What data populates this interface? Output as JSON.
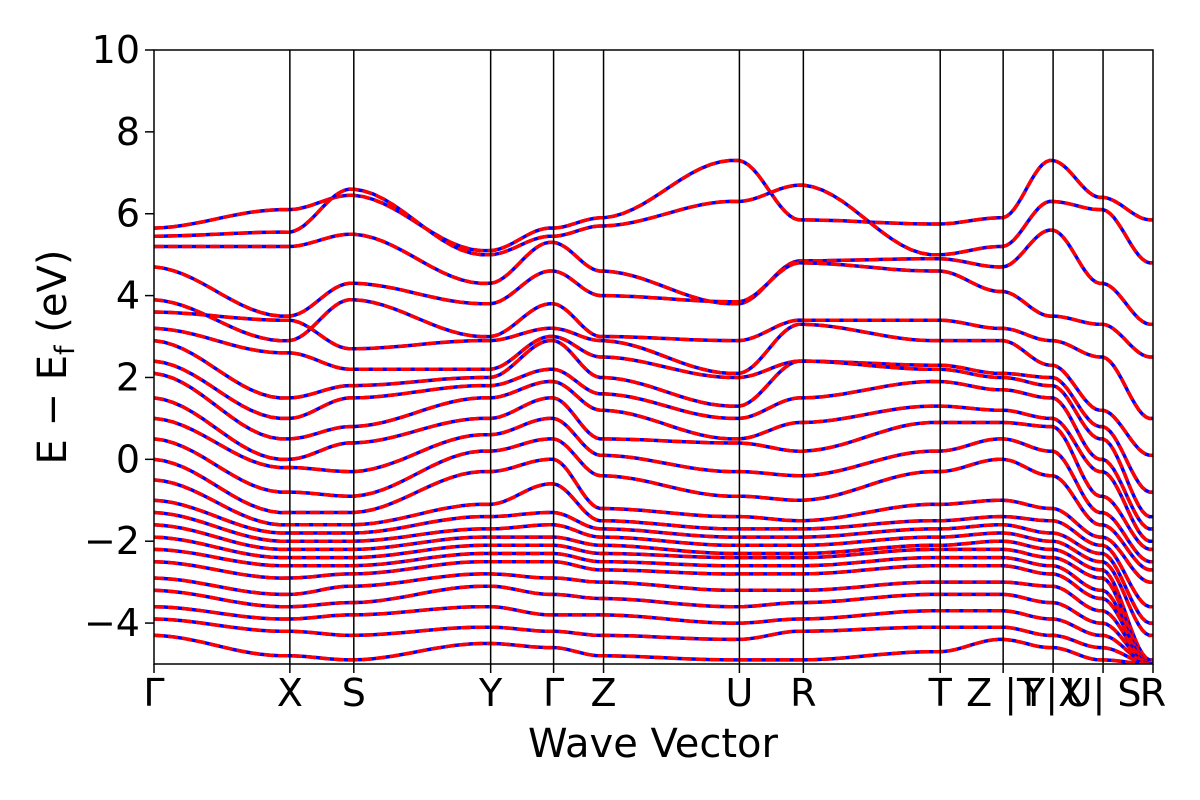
{
  "chart_data": {
    "type": "line",
    "xlabel": "Wave Vector",
    "ylabel": "E − E",
    "ylabel_sub": "f",
    "ylabel_unit": " (eV)",
    "ylim": [
      -5,
      10
    ],
    "yticks": [
      {
        "value": 10,
        "label": "10"
      },
      {
        "value": 8,
        "label": "8"
      },
      {
        "value": 6,
        "label": "6"
      },
      {
        "value": 4,
        "label": "4"
      },
      {
        "value": 2,
        "label": "2"
      },
      {
        "value": 0,
        "label": "0"
      },
      {
        "value": -2,
        "label": "−2"
      },
      {
        "value": -4,
        "label": "−4"
      }
    ],
    "xlim": [
      0,
      1
    ],
    "kpoints": [
      {
        "pos": 0.0,
        "label": "Γ"
      },
      {
        "pos": 0.136,
        "label": "X"
      },
      {
        "pos": 0.2,
        "label": "S"
      },
      {
        "pos": 0.337,
        "label": "Y"
      },
      {
        "pos": 0.4,
        "label": "Γ"
      },
      {
        "pos": 0.45,
        "label": "Z"
      },
      {
        "pos": 0.586,
        "label": "U"
      },
      {
        "pos": 0.65,
        "label": "R"
      },
      {
        "pos": 0.787,
        "label": "T"
      },
      {
        "pos": 0.85,
        "label": "Z |T"
      },
      {
        "pos": 0.9,
        "label": "Y|X"
      },
      {
        "pos": 0.95,
        "label": "U| S"
      },
      {
        "pos": 1.0,
        "label": "R"
      }
    ],
    "series": [
      {
        "color": "#0000ff",
        "style": "solid",
        "width": 3.5
      },
      {
        "color": "#ff0000",
        "style": "dashed",
        "width": 3.5
      }
    ],
    "bands": [
      {
        "nodes": [
          5.65,
          6.1,
          6.45,
          5.1,
          5.65,
          5.9,
          7.3,
          5.85,
          5.75,
          5.9,
          7.3,
          6.4,
          5.85
        ]
      },
      {
        "nodes": [
          5.45,
          5.55,
          6.6,
          5.0,
          5.45,
          5.7,
          6.3,
          6.7,
          5.0,
          5.2,
          6.3,
          6.1,
          4.8
        ]
      },
      {
        "nodes": [
          5.2,
          5.2,
          5.5,
          4.3,
          5.3,
          4.6,
          3.8,
          4.85,
          4.9,
          4.7,
          5.6,
          4.3,
          3.3
        ]
      },
      {
        "nodes": [
          4.7,
          3.5,
          4.3,
          3.8,
          4.6,
          4.0,
          3.85,
          4.8,
          4.6,
          4.1,
          3.5,
          3.3,
          2.5
        ]
      },
      {
        "nodes": [
          3.9,
          2.9,
          3.9,
          3.0,
          3.8,
          3.0,
          2.9,
          3.4,
          3.4,
          3.2,
          2.9,
          2.5,
          1.0
        ]
      },
      {
        "nodes": [
          3.6,
          3.4,
          2.7,
          2.9,
          3.2,
          2.9,
          2.1,
          3.3,
          2.9,
          2.9,
          2.3,
          1.2,
          0.1
        ]
      },
      {
        "nodes": [
          3.2,
          2.6,
          2.2,
          2.2,
          3.0,
          2.5,
          2.0,
          2.4,
          2.3,
          2.1,
          2.0,
          0.8,
          -0.8
        ]
      },
      {
        "nodes": [
          2.9,
          1.5,
          1.8,
          2.0,
          2.9,
          2.0,
          1.3,
          2.4,
          2.2,
          2.0,
          1.8,
          0.5,
          -1.4
        ]
      },
      {
        "nodes": [
          2.4,
          1.0,
          1.5,
          1.8,
          2.2,
          1.6,
          1.0,
          1.5,
          1.9,
          1.7,
          1.5,
          0.0,
          -1.7
        ]
      },
      {
        "nodes": [
          2.1,
          0.5,
          0.8,
          1.5,
          1.9,
          1.2,
          0.5,
          0.9,
          1.3,
          1.2,
          1.0,
          -0.3,
          -2.0
        ]
      },
      {
        "nodes": [
          1.5,
          0.0,
          0.4,
          1.0,
          1.5,
          0.5,
          0.4,
          0.2,
          0.9,
          0.9,
          0.8,
          -0.9,
          -2.2
        ]
      },
      {
        "nodes": [
          1.0,
          -0.2,
          -0.3,
          0.6,
          1.0,
          0.1,
          -0.3,
          -0.4,
          0.2,
          0.5,
          0.2,
          -1.3,
          -2.5
        ]
      },
      {
        "nodes": [
          0.5,
          -0.8,
          -0.9,
          0.2,
          0.5,
          -0.4,
          -0.9,
          -1.0,
          -0.3,
          0.0,
          -0.4,
          -1.6,
          -2.7
        ]
      },
      {
        "nodes": [
          0.0,
          -1.3,
          -1.3,
          -0.3,
          0.0,
          -1.2,
          -1.4,
          -1.5,
          -1.1,
          -1.0,
          -1.2,
          -1.9,
          -3.0
        ]
      },
      {
        "nodes": [
          -0.5,
          -1.6,
          -1.6,
          -1.1,
          -0.6,
          -1.5,
          -1.7,
          -1.7,
          -1.5,
          -1.4,
          -1.5,
          -2.1,
          -3.6
        ]
      },
      {
        "nodes": [
          -1.0,
          -1.8,
          -1.8,
          -1.4,
          -1.3,
          -1.7,
          -1.9,
          -1.9,
          -1.7,
          -1.6,
          -1.8,
          -2.3,
          -4.0
        ]
      },
      {
        "nodes": [
          -1.3,
          -2.0,
          -2.0,
          -1.7,
          -1.6,
          -1.9,
          -2.1,
          -2.1,
          -1.9,
          -1.8,
          -2.0,
          -2.5,
          -4.3
        ]
      },
      {
        "nodes": [
          -1.6,
          -2.2,
          -2.2,
          -1.9,
          -1.9,
          -2.1,
          -2.3,
          -2.3,
          -2.1,
          -2.0,
          -2.2,
          -2.7,
          -4.9
        ]
      },
      {
        "nodes": [
          -1.9,
          -2.4,
          -2.4,
          -2.1,
          -2.1,
          -2.3,
          -2.4,
          -2.4,
          -2.2,
          -2.2,
          -2.4,
          -2.9,
          -5.0
        ]
      },
      {
        "nodes": [
          -2.2,
          -2.6,
          -2.6,
          -2.3,
          -2.3,
          -2.5,
          -2.6,
          -2.6,
          -2.4,
          -2.4,
          -2.6,
          -3.2,
          -5.0
        ]
      },
      {
        "nodes": [
          -2.5,
          -2.9,
          -2.8,
          -2.5,
          -2.5,
          -2.7,
          -2.8,
          -2.8,
          -2.6,
          -2.6,
          -2.8,
          -3.4,
          -5.0
        ]
      },
      {
        "nodes": [
          -2.9,
          -3.3,
          -3.1,
          -2.8,
          -2.9,
          -3.0,
          -3.2,
          -3.2,
          -3.0,
          -3.0,
          -3.1,
          -3.7,
          -5.0
        ]
      },
      {
        "nodes": [
          -3.2,
          -3.6,
          -3.5,
          -3.1,
          -3.3,
          -3.4,
          -3.6,
          -3.5,
          -3.3,
          -3.3,
          -3.5,
          -4.0,
          -5.0
        ]
      },
      {
        "nodes": [
          -3.6,
          -3.9,
          -3.8,
          -3.6,
          -3.8,
          -3.8,
          -4.0,
          -3.9,
          -3.7,
          -3.7,
          -3.9,
          -4.3,
          -5.0
        ]
      },
      {
        "nodes": [
          -3.9,
          -4.2,
          -4.3,
          -4.1,
          -4.2,
          -4.3,
          -4.4,
          -4.2,
          -4.1,
          -4.1,
          -4.3,
          -4.6,
          -5.0
        ]
      },
      {
        "nodes": [
          -4.3,
          -4.8,
          -4.9,
          -4.5,
          -4.6,
          -4.8,
          -4.9,
          -4.9,
          -4.7,
          -4.4,
          -4.6,
          -4.9,
          -5.0
        ]
      }
    ]
  }
}
